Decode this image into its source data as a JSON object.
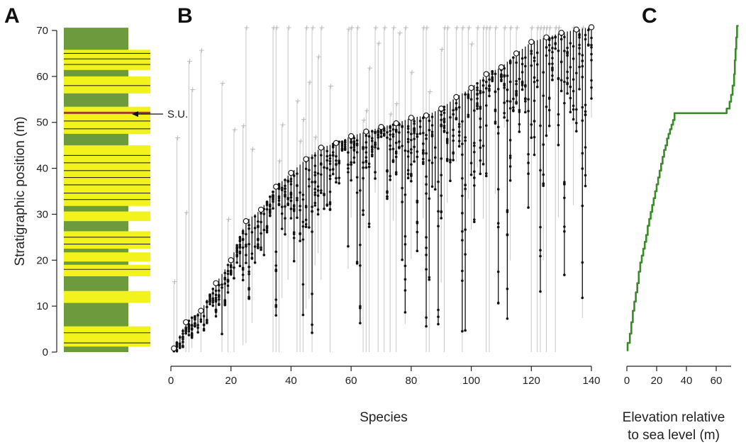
{
  "panels": {
    "a": {
      "letter": "A"
    },
    "b": {
      "letter": "B"
    },
    "c": {
      "letter": "C"
    }
  },
  "colors": {
    "mudstone": "#6d9a3c",
    "sandstone": "#f2f21c",
    "shocked_unit": "#a33a2a",
    "range_line": "#111111",
    "extension_line": "#c8c8c8",
    "sea_level_curve": "#3a8a2a"
  },
  "chart_data": [
    {
      "panel": "A",
      "type": "stratigraphic-column",
      "ylabel": "Stratigraphic position (m)",
      "ylim": [
        0,
        70
      ],
      "yticks": [
        0,
        10,
        20,
        30,
        40,
        50,
        60,
        70
      ],
      "annotation": {
        "label": "S.U.",
        "position_m": 52
      },
      "beds": [
        {
          "lithology": "mudstone",
          "bottom_m": 0,
          "top_m": 70.6
        },
        {
          "lithology": "sandstone",
          "bottom_m": 1.2,
          "top_m": 5.6
        },
        {
          "lithology": "sandstone",
          "bottom_m": 10.7,
          "top_m": 13.3
        },
        {
          "lithology": "sandstone",
          "bottom_m": 16.5,
          "top_m": 19.0
        },
        {
          "lithology": "sandstone",
          "bottom_m": 19.7,
          "top_m": 21.7
        },
        {
          "lithology": "sandstone",
          "bottom_m": 22.5,
          "top_m": 26.3
        },
        {
          "lithology": "sandstone",
          "bottom_m": 28.5,
          "top_m": 30.6
        },
        {
          "lithology": "sandstone",
          "bottom_m": 31.8,
          "top_m": 45.0
        },
        {
          "lithology": "sandstone",
          "bottom_m": 47.5,
          "top_m": 53.4
        },
        {
          "lithology": "sandstone",
          "bottom_m": 56.3,
          "top_m": 60.0
        },
        {
          "lithology": "sandstone",
          "bottom_m": 61.4,
          "top_m": 65.8
        }
      ]
    },
    {
      "panel": "B",
      "type": "range-chart",
      "xlabel": "Species",
      "xlim": [
        0,
        140
      ],
      "xticks": [
        0,
        20,
        40,
        60,
        80,
        100,
        120,
        140
      ],
      "ylim": [
        0,
        70
      ],
      "note": "Each species shows an observed stratigraphic range (black line with occurrences) whose top is the highest occurrence; gray lines are confidence extensions.",
      "range_tops_sampled": [
        {
          "species": 1,
          "top_m": 0.8
        },
        {
          "species": 5,
          "top_m": 6.5
        },
        {
          "species": 10,
          "top_m": 9.0
        },
        {
          "species": 15,
          "top_m": 15.0
        },
        {
          "species": 20,
          "top_m": 20.0
        },
        {
          "species": 25,
          "top_m": 28.5
        },
        {
          "species": 30,
          "top_m": 31.0
        },
        {
          "species": 35,
          "top_m": 36.0
        },
        {
          "species": 40,
          "top_m": 39.0
        },
        {
          "species": 45,
          "top_m": 42.0
        },
        {
          "species": 50,
          "top_m": 44.5
        },
        {
          "species": 55,
          "top_m": 45.5
        },
        {
          "species": 60,
          "top_m": 47.0
        },
        {
          "species": 65,
          "top_m": 48.0
        },
        {
          "species": 70,
          "top_m": 49.0
        },
        {
          "species": 75,
          "top_m": 49.8
        },
        {
          "species": 80,
          "top_m": 51.0
        },
        {
          "species": 85,
          "top_m": 51.5
        },
        {
          "species": 90,
          "top_m": 53.0
        },
        {
          "species": 95,
          "top_m": 55.5
        },
        {
          "species": 100,
          "top_m": 57.5
        },
        {
          "species": 105,
          "top_m": 60.5
        },
        {
          "species": 110,
          "top_m": 62.0
        },
        {
          "species": 115,
          "top_m": 65.0
        },
        {
          "species": 120,
          "top_m": 67.5
        },
        {
          "species": 125,
          "top_m": 68.5
        },
        {
          "species": 130,
          "top_m": 69.5
        },
        {
          "species": 135,
          "top_m": 70.2
        },
        {
          "species": 140,
          "top_m": 70.7
        }
      ]
    },
    {
      "panel": "C",
      "type": "line",
      "xlabel_line1": "Elevation relative",
      "xlabel_line2": "to sea level (m)",
      "xlim": [
        0,
        75
      ],
      "xticks": [
        0,
        20,
        40,
        60
      ],
      "ylim": [
        0,
        70
      ],
      "series": [
        {
          "x": [
            0.5,
            2,
            3,
            4,
            5,
            6,
            7,
            8,
            9,
            10,
            11,
            12,
            13,
            14,
            15,
            16,
            17,
            18,
            19,
            20,
            21,
            22,
            23,
            24,
            25,
            26,
            27,
            28,
            29,
            30,
            31,
            32,
            33,
            67,
            69,
            70,
            71,
            72,
            72.5,
            73,
            73.5,
            74,
            75
          ],
          "y": [
            0.2,
            2.0,
            4.0,
            6.5,
            9.0,
            11.0,
            13.0,
            15.0,
            17.5,
            19.5,
            21.0,
            22.5,
            24.0,
            25.5,
            27.5,
            29.0,
            30.5,
            32.0,
            33.5,
            35.0,
            36.5,
            38.0,
            39.5,
            41.0,
            42.5,
            44.0,
            45.0,
            46.5,
            47.5,
            48.5,
            49.5,
            50.5,
            52.0,
            52.0,
            53.0,
            54.5,
            56.0,
            58.0,
            60.5,
            63.5,
            66.0,
            68.5,
            71.0
          ]
        }
      ]
    }
  ]
}
